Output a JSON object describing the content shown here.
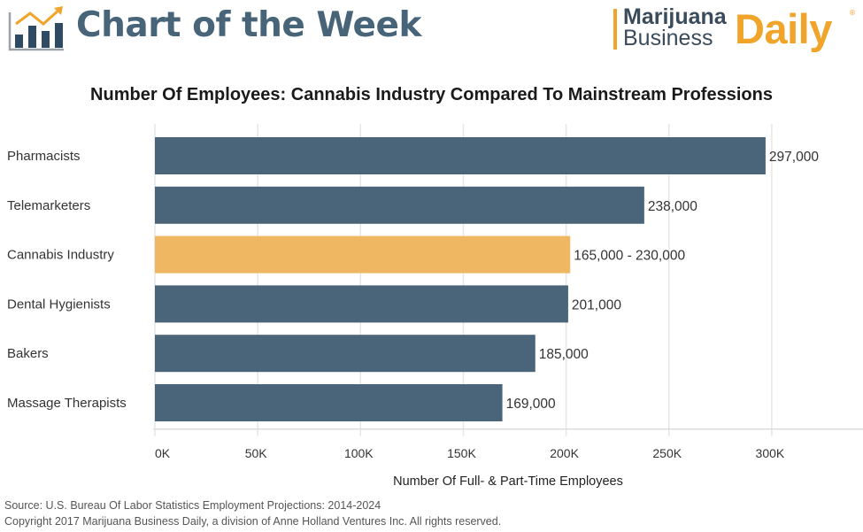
{
  "header": {
    "section_title": "Chart of the Week",
    "brand": {
      "line1": "Marijuana",
      "line2": "Business",
      "line3": "Daily",
      "registered_mark": "®"
    },
    "icon": "rising-bar-chart-icon"
  },
  "colors": {
    "primary_bar": "#4a6579",
    "highlight_bar": "#f0b762",
    "brand_orange": "#f0a42a",
    "title_blue": "#476479"
  },
  "chart_data": {
    "type": "bar",
    "orientation": "horizontal",
    "title": "Number Of Employees: Cannabis Industry Compared To Mainstream Professions",
    "xlabel": "Number Of Full- & Part-Time Employees",
    "ylabel": "",
    "xlim": [
      0,
      350000
    ],
    "x_ticks": [
      0,
      50000,
      100000,
      150000,
      200000,
      250000,
      300000
    ],
    "x_tick_labels": [
      "0K",
      "50K",
      "100K",
      "150K",
      "200K",
      "250K",
      "300K"
    ],
    "grid": true,
    "categories": [
      "Pharmacists",
      "Telemarketers",
      "Cannabis Industry",
      "Dental Hygienists",
      "Bakers",
      "Massage Therapists"
    ],
    "values": [
      297000,
      238000,
      202000,
      201000,
      185000,
      169000
    ],
    "value_labels": [
      "297,000",
      "238,000",
      "165,000 - 230,000",
      "201,000",
      "185,000",
      "169,000"
    ],
    "highlight": [
      false,
      false,
      true,
      false,
      false,
      false
    ],
    "notes": "Cannabis Industry shown as a range 165,000 - 230,000; bar drawn to roughly 202,000"
  },
  "footer": {
    "source": "Source: U.S. Bureau Of Labor Statistics Employment Projections: 2014-2024",
    "copyright": "Copyright 2017 Marijuana Business Daily, a division of Anne Holland Ventures Inc. All rights reserved."
  }
}
